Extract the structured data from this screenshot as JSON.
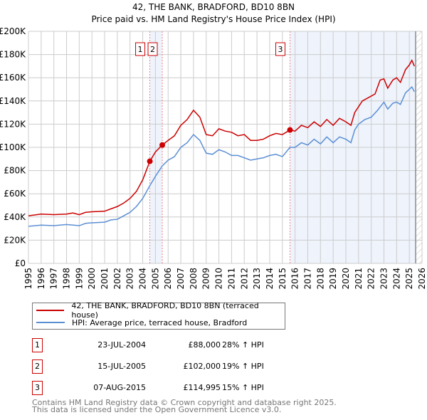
{
  "chart_data": {
    "type": "line",
    "title": "42, THE BANK, BRADFORD, BD10 8BN",
    "subtitle": "Price paid vs. HM Land Registry's House Price Index (HPI)",
    "xlim": [
      1995,
      2026
    ],
    "ylim": [
      0,
      200000
    ],
    "y_ticks": [
      0,
      20000,
      40000,
      60000,
      80000,
      100000,
      120000,
      140000,
      160000,
      180000,
      200000
    ],
    "y_tick_labels": [
      "£0",
      "£20K",
      "£40K",
      "£60K",
      "£80K",
      "£100K",
      "£120K",
      "£140K",
      "£160K",
      "£180K",
      "£200K"
    ],
    "x_ticks": [
      1995,
      1996,
      1997,
      1998,
      1999,
      2000,
      2001,
      2002,
      2003,
      2004,
      2005,
      2006,
      2007,
      2008,
      2009,
      2010,
      2011,
      2012,
      2013,
      2014,
      2015,
      2016,
      2017,
      2018,
      2019,
      2020,
      2021,
      2022,
      2023,
      2024,
      2025,
      2026
    ],
    "grid": true,
    "series": [
      {
        "name": "42, THE BANK, BRADFORD, BD10 8BN (terraced house)",
        "color": "#cc0000",
        "x": [
          1995,
          1996,
          1997,
          1998,
          1998.5,
          1999,
          1999.5,
          2000,
          2001,
          2001.5,
          2002,
          2002.5,
          2003,
          2003.5,
          2004,
          2004.56,
          2005,
          2005.54,
          2006,
          2006.5,
          2007,
          2007.5,
          2008,
          2008.5,
          2009,
          2009.5,
          2010,
          2010.5,
          2011,
          2011.5,
          2012,
          2012.5,
          2013,
          2013.5,
          2014,
          2014.5,
          2015,
          2015.6,
          2016,
          2016.5,
          2017,
          2017.5,
          2018,
          2018.5,
          2019,
          2019.5,
          2020,
          2020.4,
          2020.7,
          2021,
          2021.3,
          2021.8,
          2022.3,
          2022.7,
          2023,
          2023.3,
          2023.7,
          2024,
          2024.3,
          2024.7,
          2025,
          2025.2,
          2025.4
        ],
        "y": [
          41000,
          42500,
          42000,
          42500,
          43500,
          42000,
          44000,
          44500,
          45000,
          47000,
          49000,
          52000,
          56000,
          62000,
          72000,
          88000,
          96000,
          102000,
          106000,
          110000,
          119000,
          124000,
          132000,
          126000,
          111000,
          110000,
          116000,
          114000,
          113000,
          110000,
          111000,
          106000,
          106000,
          107000,
          110000,
          112000,
          111000,
          114995,
          114000,
          119000,
          117000,
          122000,
          118000,
          124000,
          119000,
          125000,
          122000,
          119000,
          130000,
          135000,
          140000,
          143000,
          146000,
          158000,
          159000,
          151000,
          158000,
          160000,
          156000,
          167000,
          171000,
          175000,
          170000
        ]
      },
      {
        "name": "HPI: Average price, terraced house, Bradford",
        "color": "#5b8fd4",
        "x": [
          1995,
          1996,
          1997,
          1998,
          1999,
          1999.5,
          2000,
          2001,
          2001.5,
          2002,
          2002.5,
          2003,
          2003.5,
          2004,
          2004.56,
          2005,
          2005.54,
          2006,
          2006.5,
          2007,
          2007.5,
          2008,
          2008.5,
          2009,
          2009.5,
          2010,
          2010.5,
          2011,
          2011.5,
          2012,
          2012.5,
          2013,
          2013.5,
          2014,
          2014.5,
          2015,
          2015.6,
          2016,
          2016.5,
          2017,
          2017.5,
          2018,
          2018.5,
          2019,
          2019.5,
          2020,
          2020.4,
          2020.7,
          2021,
          2021.5,
          2022,
          2022.5,
          2023,
          2023.3,
          2023.7,
          2024,
          2024.3,
          2024.7,
          2025,
          2025.2,
          2025.4
        ],
        "y": [
          32000,
          33000,
          32500,
          33500,
          32500,
          34500,
          35000,
          35500,
          37500,
          38000,
          41000,
          44000,
          49000,
          56000,
          67000,
          75000,
          84000,
          89000,
          92000,
          100000,
          104000,
          111000,
          106000,
          95000,
          94000,
          98000,
          96000,
          93000,
          93000,
          91000,
          89000,
          90000,
          91000,
          93000,
          94000,
          92000,
          100000,
          100000,
          104000,
          102000,
          107000,
          103000,
          109000,
          104000,
          109000,
          107000,
          104000,
          115000,
          120000,
          124000,
          126000,
          132000,
          139000,
          133000,
          138000,
          139000,
          137000,
          147000,
          150000,
          152000,
          148000
        ]
      }
    ],
    "sales": [
      {
        "label": "1",
        "x": 2004.56,
        "price": 88000,
        "date": "23-JUL-2004",
        "price_text": "£88,000",
        "hpi_text": "28% ↑ HPI"
      },
      {
        "label": "2",
        "x": 2005.54,
        "price": 102000,
        "date": "15-JUL-2005",
        "price_text": "£102,000",
        "hpi_text": "19% ↑ HPI"
      },
      {
        "label": "3",
        "x": 2015.6,
        "price": 114995,
        "date": "07-AUG-2015",
        "price_text": "£114,995",
        "hpi_text": "15% ↑ HPI"
      }
    ],
    "data_end": 2025.5
  },
  "legend": {
    "red": "42, THE BANK, BRADFORD, BD10 8BN (terraced house)",
    "blue": "HPI: Average price, terraced house, Bradford"
  },
  "footer": {
    "line1": "Contains HM Land Registry data © Crown copyright and database right 2025.",
    "line2": "This data is licensed under the Open Government Licence v3.0."
  }
}
